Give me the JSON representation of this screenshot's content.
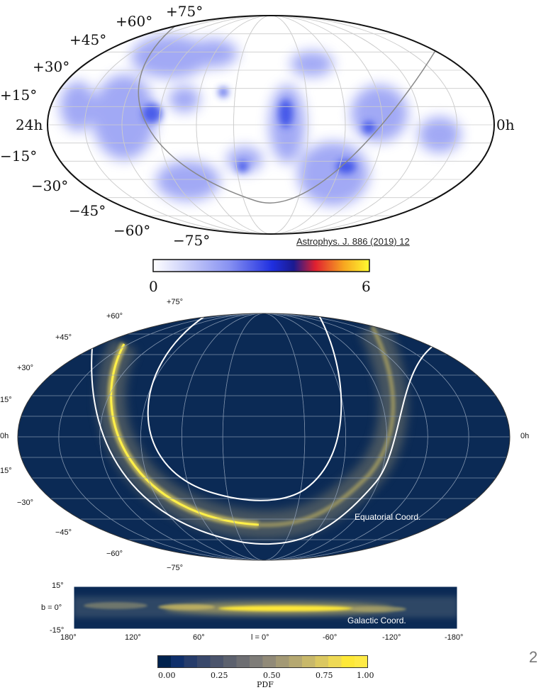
{
  "top_map": {
    "dec_labels": [
      "+75°",
      "+60°",
      "+45°",
      "+30°",
      "+15°",
      "−15°",
      "−30°",
      "−45°",
      "−60°",
      "−75°"
    ],
    "ra_left": "24h",
    "ra_right": "0h",
    "citation": "Astrophys. J. 886 (2019) 12",
    "colorbar": {
      "min_label": "0",
      "max_label": "6"
    }
  },
  "bottom_map": {
    "dec_labels": [
      "+75°",
      "+60°",
      "+45°",
      "+30°",
      "15°",
      "0h",
      "15°",
      "−30°",
      "−45°",
      "−60°",
      "−75°"
    ],
    "ra_right": "0h",
    "annotation": "Equatorial Coord."
  },
  "galactic_panel": {
    "b_ticks": [
      "15°",
      "b = 0°",
      "-15°"
    ],
    "l_ticks": [
      "180°",
      "120°",
      "60°",
      "l = 0°",
      "-60°",
      "-120°",
      "-180°"
    ],
    "annotation": "Galactic Coord."
  },
  "pdf_colorbar": {
    "ticks": [
      "0.00",
      "0.25",
      "0.50",
      "0.75",
      "1.00"
    ],
    "label": "PDF"
  },
  "page_number": "2",
  "colors": {
    "navy": "#0b2a55",
    "yellow": "#f7e53a",
    "blob_blue": "#3d50e8"
  }
}
